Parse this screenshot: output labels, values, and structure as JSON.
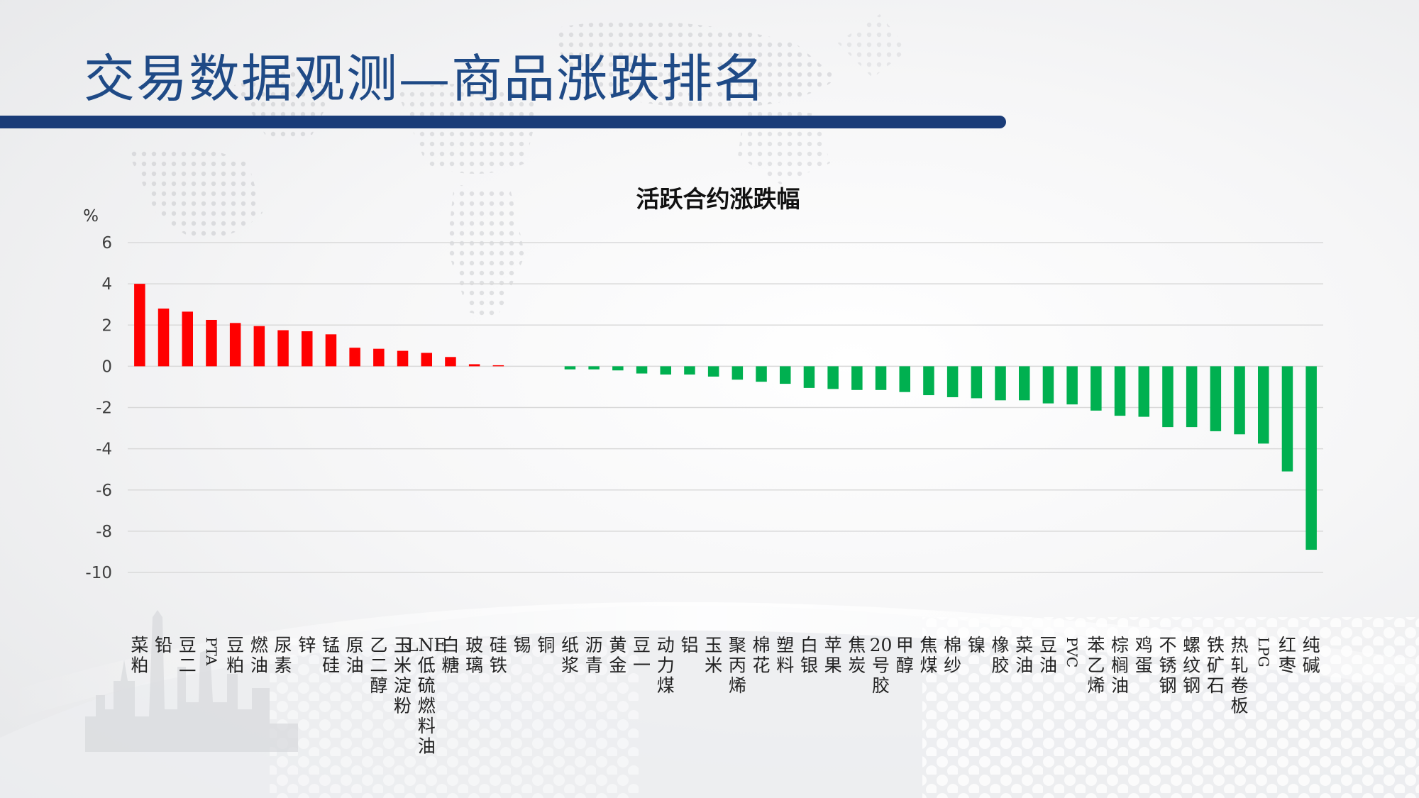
{
  "slide": {
    "title": "交易数据观测—商品涨跌排名"
  },
  "colors": {
    "title_text": "#1f4a86",
    "title_rule": "#1a3c78",
    "rise": "#ff0000",
    "fall": "#00b050",
    "gridline": "#d9d9d9"
  },
  "chart_data": {
    "type": "bar",
    "title": "活跃合约涨跌幅",
    "ylabel": "%",
    "xlabel": "",
    "ylim": [
      -10,
      6
    ],
    "yticks": [
      6,
      4,
      2,
      0,
      -2,
      -4,
      -6,
      -8,
      -10
    ],
    "grid": true,
    "legend": "none",
    "categories": [
      "菜粕",
      "铅",
      "豆二",
      "PTA",
      "豆粕",
      "燃油",
      "尿素",
      "锌",
      "锰硅",
      "原油",
      "乙二醇",
      "玉米淀粉",
      "LNE低硫燃料油",
      "白糖",
      "玻璃",
      "硅铁",
      "锡",
      "铜",
      "纸浆",
      "沥青",
      "黄金",
      "豆一",
      "动力煤",
      "铝",
      "玉米",
      "聚丙烯",
      "棉花",
      "塑料",
      "白银",
      "苹果",
      "焦炭",
      "20号胶",
      "甲醇",
      "焦煤",
      "棉纱",
      "镍",
      "橡胶",
      "菜油",
      "豆油",
      "PVC",
      "苯乙烯",
      "棕榈油",
      "鸡蛋",
      "不锈钢",
      "螺纹钢",
      "铁矿石",
      "热轧卷板",
      "LPG",
      "红枣",
      "纯碱"
    ],
    "values": [
      4.0,
      2.8,
      2.65,
      2.25,
      2.1,
      1.95,
      1.75,
      1.7,
      1.55,
      0.9,
      0.85,
      0.75,
      0.65,
      0.45,
      0.1,
      0.05,
      0.0,
      0.0,
      -0.15,
      -0.15,
      -0.2,
      -0.35,
      -0.4,
      -0.4,
      -0.5,
      -0.65,
      -0.75,
      -0.85,
      -1.05,
      -1.1,
      -1.15,
      -1.15,
      -1.25,
      -1.4,
      -1.5,
      -1.55,
      -1.65,
      -1.65,
      -1.8,
      -1.85,
      -2.15,
      -2.4,
      -2.45,
      -2.95,
      -2.95,
      -3.15,
      -3.3,
      -3.75,
      -5.1,
      -8.9
    ]
  }
}
